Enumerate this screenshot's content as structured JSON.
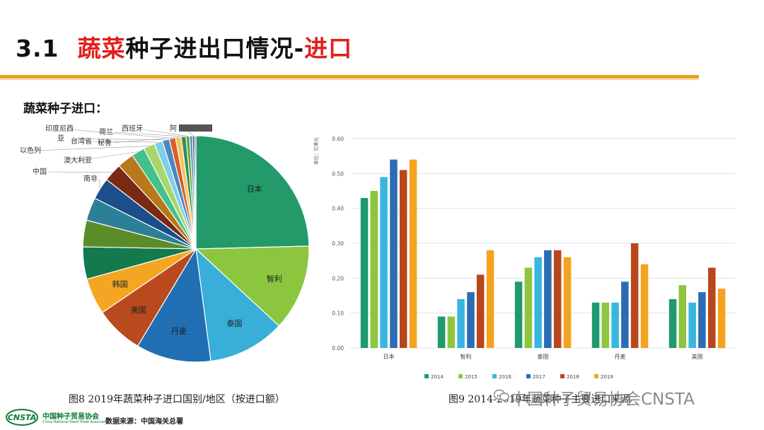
{
  "header": {
    "number": "3.1",
    "title_red_1": "蔬菜",
    "title_black": "种子进出口情况-",
    "title_red_2": "进口"
  },
  "section_label": "蔬菜种子进口：",
  "captions": {
    "fig8": "图8   2019年蔬菜种子进口国别/地区（按进口额）",
    "fig9": "图9   2014-2019年蔬菜种子主要进口来源"
  },
  "watermark": "中国种子贸易协会CNSTA",
  "footer": {
    "org": "中国种子贸易协会",
    "org_en": "China National Seed Trade Association",
    "source": "数据来源：中国海关总署"
  },
  "chart_data": [
    {
      "type": "pie",
      "title": "",
      "slices": [
        {
          "label": "日本",
          "value": 24.6,
          "color": "#239a6a"
        },
        {
          "label": "智利",
          "value": 12.3,
          "color": "#8cc63f"
        },
        {
          "label": "泰国",
          "value": 11.0,
          "color": "#38aed8"
        },
        {
          "label": "丹麦",
          "value": 10.7,
          "color": "#1f6fb2"
        },
        {
          "label": "美国",
          "value": 6.9,
          "color": "#b84a1d"
        },
        {
          "label": "韩国",
          "value": 5.2,
          "color": "#f4a623"
        },
        {
          "label": "",
          "value": 4.6,
          "color": "#127a4d"
        },
        {
          "label": "",
          "value": 3.8,
          "color": "#5b8c2a"
        },
        {
          "label": "",
          "value": 3.3,
          "color": "#2b7f96"
        },
        {
          "label": "南非",
          "value": 3.1,
          "color": "#1c4e8a"
        },
        {
          "label": "中国",
          "value": 2.6,
          "color": "#7a2a12"
        },
        {
          "label": "",
          "value": 2.4,
          "color": "#b7791b"
        },
        {
          "label": "澳大利亚",
          "value": 1.9,
          "color": "#45c08a"
        },
        {
          "label": "以色列",
          "value": 1.6,
          "color": "#a8d66a"
        },
        {
          "label": "台湾省",
          "value": 1.2,
          "color": "#7fcfe6"
        },
        {
          "label": "亚",
          "value": 1.0,
          "color": "#4a86c5"
        },
        {
          "label": "印度尼西",
          "value": 0.9,
          "color": "#d9602a"
        },
        {
          "label": "秘鲁",
          "value": 0.8,
          "color": "#f7c55a"
        },
        {
          "label": "荷兰",
          "value": 0.7,
          "color": "#2e8f5e"
        },
        {
          "label": "西班牙",
          "value": 0.5,
          "color": "#6e9e34"
        },
        {
          "label": "",
          "value": 0.4,
          "color": "#3c98b8"
        },
        {
          "label": "阿",
          "value": 0.3,
          "color": "#2d5d8f"
        },
        {
          "label": "",
          "value": 0.2,
          "color": "#8c3a1a"
        }
      ]
    },
    {
      "type": "bar",
      "title": "",
      "ylabel": "单位：亿美元",
      "xlabel": "",
      "categories": [
        "日本",
        "智利",
        "泰国",
        "丹麦",
        "美国"
      ],
      "ylim": [
        0,
        0.6
      ],
      "yticks": [
        "0.00",
        "0.10",
        "0.20",
        "0.30",
        "0.40",
        "0.50",
        "0.60"
      ],
      "grid": true,
      "legend_position": "bottom",
      "series": [
        {
          "name": "2014",
          "color": "#1f9a6e",
          "values": [
            0.43,
            0.09,
            0.19,
            0.13,
            0.14
          ]
        },
        {
          "name": "2015",
          "color": "#8cc63f",
          "values": [
            0.45,
            0.09,
            0.23,
            0.13,
            0.18
          ]
        },
        {
          "name": "2016",
          "color": "#38b6e0",
          "values": [
            0.49,
            0.14,
            0.26,
            0.13,
            0.13
          ]
        },
        {
          "name": "2017",
          "color": "#2a6db5",
          "values": [
            0.54,
            0.16,
            0.28,
            0.19,
            0.16
          ]
        },
        {
          "name": "2018",
          "color": "#b8461b",
          "values": [
            0.51,
            0.21,
            0.28,
            0.3,
            0.23
          ]
        },
        {
          "name": "2019",
          "color": "#f4a31f",
          "values": [
            0.54,
            0.28,
            0.26,
            0.24,
            0.17
          ]
        }
      ]
    }
  ]
}
